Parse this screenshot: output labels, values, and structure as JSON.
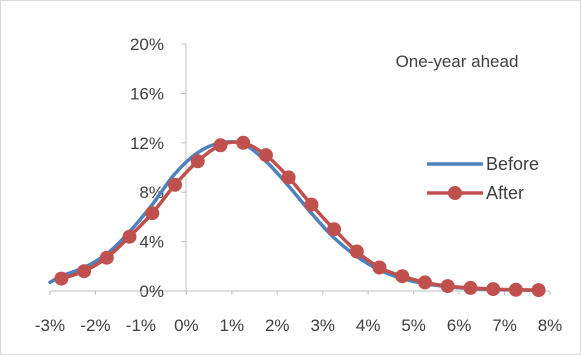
{
  "chart_data": {
    "type": "line",
    "title": "",
    "annotation": "One-year ahead",
    "xlabel": "",
    "ylabel": "",
    "x": [
      -3,
      -2.75,
      -2.25,
      -1.75,
      -1.25,
      -0.75,
      -0.25,
      0.25,
      0.75,
      1.25,
      1.75,
      2.25,
      2.75,
      3.25,
      3.75,
      4.25,
      4.75,
      5.25,
      5.75,
      6.25,
      6.75,
      7.25,
      7.75
    ],
    "xlim": [
      -3,
      8
    ],
    "ylim": [
      0,
      20
    ],
    "x_ticks": [
      "-3%",
      "-2%",
      "-1%",
      "0%",
      "1%",
      "2%",
      "3%",
      "4%",
      "5%",
      "6%",
      "7%",
      "8%"
    ],
    "y_ticks": [
      "0%",
      "4%",
      "8%",
      "12%",
      "16%",
      "20%"
    ],
    "grid": false,
    "legend_position": "right",
    "series": [
      {
        "name": "Before",
        "color": "#4f81bd",
        "marker": false,
        "values": [
          0.7,
          1.2,
          1.9,
          3.0,
          4.8,
          7.0,
          9.5,
          11.2,
          12.0,
          11.9,
          10.5,
          8.5,
          6.3,
          4.3,
          2.8,
          1.7,
          1.0,
          0.6,
          0.35,
          0.2,
          0.12,
          0.08,
          0.05
        ]
      },
      {
        "name": "After",
        "color": "#c0504d",
        "marker": true,
        "values": [
          null,
          1.0,
          1.6,
          2.7,
          4.4,
          6.3,
          8.6,
          10.5,
          11.8,
          12.0,
          11.0,
          9.2,
          7.0,
          5.0,
          3.2,
          1.9,
          1.2,
          0.7,
          0.4,
          0.25,
          0.15,
          0.1,
          0.07
        ]
      }
    ]
  }
}
